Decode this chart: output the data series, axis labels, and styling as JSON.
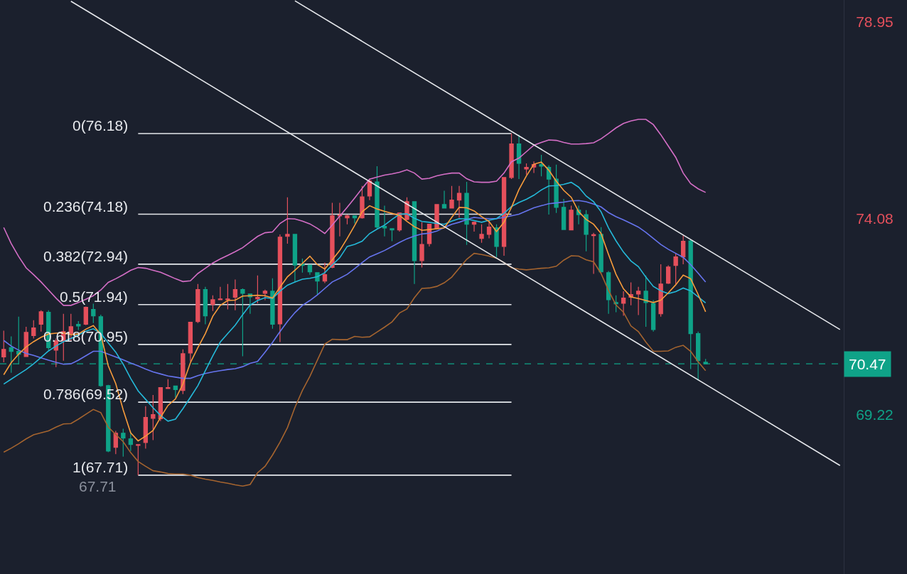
{
  "chart_data": {
    "type": "candlestick",
    "tick_labels": "y",
    "ylim": [
      65.26,
      79.49
    ],
    "yticks": [
      78.95,
      74.08,
      69.22
    ],
    "categories": [
      null,
      null,
      null,
      null,
      null,
      null,
      null,
      null,
      null,
      null,
      null,
      null,
      null,
      null,
      null,
      null,
      null,
      null,
      null,
      null,
      null,
      null,
      null,
      null,
      null,
      null,
      null,
      null,
      null,
      null,
      null,
      null,
      null,
      null,
      null,
      null,
      null,
      null,
      null,
      null,
      null,
      null,
      null,
      null,
      null,
      null,
      null,
      null,
      null,
      null,
      null,
      null,
      null,
      null,
      null,
      null,
      null,
      null,
      null,
      null,
      null,
      null,
      null,
      null,
      null,
      null,
      null,
      null,
      null,
      null,
      null,
      null,
      null,
      null,
      null,
      null,
      null,
      null,
      null,
      null,
      null,
      null,
      null,
      null,
      null,
      null,
      null,
      null,
      null,
      null,
      null,
      null,
      null,
      null,
      null,
      null,
      null,
      null,
      null,
      null,
      null,
      null,
      null,
      null,
      null,
      null,
      null,
      null,
      null,
      null,
      null,
      null,
      null
    ],
    "ohlc": [
      [
        70.64,
        71.29,
        70.51,
        70.83
      ],
      [
        70.87,
        71.15,
        70.25,
        70.78
      ],
      [
        70.78,
        71.64,
        70.46,
        70.71
      ],
      [
        70.65,
        71.39,
        70.64,
        71.25
      ],
      [
        71.17,
        71.55,
        71.1,
        71.36
      ],
      [
        71.45,
        71.8,
        71.27,
        71.76
      ],
      [
        71.75,
        71.8,
        70.81,
        70.87
      ],
      [
        70.81,
        71.1,
        70.39,
        71.04
      ],
      [
        71.04,
        71.71,
        70.55,
        71.27
      ],
      [
        71.22,
        71.71,
        71.04,
        71.39
      ],
      [
        71.45,
        71.53,
        71.31,
        71.41
      ],
      [
        71.45,
        71.89,
        71.43,
        71.87
      ],
      [
        71.82,
        71.96,
        71.48,
        71.66
      ],
      [
        71.64,
        71.69,
        69.9,
        69.93
      ],
      [
        69.93,
        69.95,
        68.28,
        68.31
      ],
      [
        68.4,
        68.81,
        68.23,
        68.75
      ],
      [
        68.75,
        68.86,
        68.17,
        68.63
      ],
      [
        68.61,
        68.79,
        68.31,
        68.47
      ],
      [
        68.45,
        68.47,
        67.71,
        68.47
      ],
      [
        68.52,
        69.42,
        68.37,
        69.14
      ],
      [
        69.12,
        69.7,
        68.58,
        69.21
      ],
      [
        69.11,
        69.88,
        69.05,
        69.88
      ],
      [
        69.86,
        70.09,
        69.86,
        69.88
      ],
      [
        69.92,
        69.92,
        69.63,
        69.83
      ],
      [
        69.81,
        70.83,
        69.72,
        70.72
      ],
      [
        70.74,
        71.5,
        70.53,
        71.5
      ],
      [
        71.52,
        72.45,
        71.48,
        72.31
      ],
      [
        72.31,
        72.38,
        71.45,
        71.66
      ],
      [
        71.94,
        72.17,
        71.78,
        72.06
      ],
      [
        72.06,
        72.38,
        72.06,
        72.08
      ],
      [
        72.06,
        72.45,
        71.82,
        72.08
      ],
      [
        72.12,
        72.56,
        71.8,
        72.31
      ],
      [
        72.31,
        72.34,
        70.66,
        72.22
      ],
      [
        72.2,
        72.2,
        71.71,
        72.13
      ],
      [
        72.08,
        72.66,
        71.97,
        72.12
      ],
      [
        72.22,
        72.31,
        72.05,
        72.27
      ],
      [
        72.27,
        72.59,
        71.34,
        71.45
      ],
      [
        71.46,
        73.68,
        71.01,
        73.61
      ],
      [
        73.63,
        74.6,
        73.45,
        73.68
      ],
      [
        73.68,
        73.68,
        72.49,
        72.92
      ],
      [
        72.94,
        73.08,
        72.73,
        72.91
      ],
      [
        72.92,
        72.92,
        72.68,
        72.75
      ],
      [
        72.73,
        72.73,
        72.19,
        72.52
      ],
      [
        72.52,
        72.98,
        72.47,
        72.68
      ],
      [
        72.86,
        74.46,
        72.84,
        74.14
      ],
      [
        74.14,
        74.46,
        73.63,
        74.16
      ],
      [
        74.09,
        74.17,
        73.93,
        74.14
      ],
      [
        74.14,
        74.14,
        73.95,
        74.09
      ],
      [
        74.09,
        74.88,
        74.07,
        74.61
      ],
      [
        74.63,
        75.06,
        74.53,
        75.0
      ],
      [
        74.98,
        75.37,
        73.82,
        73.86
      ],
      [
        73.88,
        74.39,
        73.63,
        73.84
      ],
      [
        73.82,
        73.82,
        73.51,
        73.79
      ],
      [
        73.79,
        74.21,
        73.75,
        74.21
      ],
      [
        74.05,
        74.6,
        74.03,
        74.49
      ],
      [
        74.49,
        74.49,
        72.45,
        73.03
      ],
      [
        73.03,
        73.98,
        72.86,
        73.43
      ],
      [
        73.45,
        73.93,
        73.38,
        73.93
      ],
      [
        73.82,
        74.42,
        73.8,
        74.42
      ],
      [
        74.42,
        74.76,
        74.33,
        74.33
      ],
      [
        74.33,
        74.88,
        74.33,
        74.53
      ],
      [
        74.53,
        74.88,
        74.09,
        74.7
      ],
      [
        74.7,
        74.98,
        73.42,
        73.93
      ],
      [
        73.93,
        74.0,
        73.75,
        73.98
      ],
      [
        73.58,
        73.93,
        73.47,
        73.68
      ],
      [
        73.68,
        74.03,
        73.58,
        73.86
      ],
      [
        73.84,
        73.93,
        73.12,
        73.38
      ],
      [
        73.38,
        75.09,
        73.15,
        75.09
      ],
      [
        75.09,
        76.18,
        75.05,
        75.92
      ],
      [
        75.92,
        76.15,
        75.05,
        75.44
      ],
      [
        75.3,
        75.44,
        75.16,
        75.34
      ],
      [
        75.35,
        75.49,
        75.2,
        75.41
      ],
      [
        75.41,
        75.65,
        75.12,
        75.37
      ],
      [
        75.34,
        75.39,
        74.17,
        75.05
      ],
      [
        75.05,
        75.41,
        74.21,
        74.35
      ],
      [
        74.35,
        74.56,
        73.79,
        73.8
      ],
      [
        73.79,
        74.39,
        73.79,
        74.28
      ],
      [
        74.28,
        74.39,
        73.93,
        74.17
      ],
      [
        74.17,
        74.28,
        73.26,
        73.68
      ],
      [
        73.65,
        73.72,
        72.7,
        73.67
      ],
      [
        73.68,
        73.86,
        72.73,
        72.75
      ],
      [
        72.73,
        72.77,
        71.71,
        72.06
      ],
      [
        71.99,
        72.17,
        71.75,
        71.96
      ],
      [
        71.97,
        72.27,
        71.66,
        72.1
      ],
      [
        72.12,
        72.49,
        71.92,
        72.19
      ],
      [
        72.2,
        72.38,
        71.68,
        72.27
      ],
      [
        72.27,
        72.66,
        71.39,
        71.99
      ],
      [
        71.97,
        72.05,
        71.27,
        71.32
      ],
      [
        71.71,
        72.94,
        71.64,
        72.45
      ],
      [
        72.47,
        72.91,
        72.45,
        72.87
      ],
      [
        72.91,
        73.21,
        72.45,
        73.12
      ],
      [
        73.12,
        73.65,
        72.94,
        73.51
      ],
      [
        73.52,
        73.56,
        70.34,
        71.22
      ],
      [
        71.22,
        71.27,
        70.06,
        70.55
      ],
      [
        70.51,
        70.59,
        70.46,
        70.47
      ],
      null,
      null,
      null,
      null,
      null,
      null,
      null,
      null,
      null,
      null,
      null,
      null,
      null,
      null,
      null,
      null,
      null,
      null
    ],
    "colors": [
      "#e5505c",
      "#0fa388",
      "#0fa388",
      "#e5505c",
      "#e5505c",
      "#e5505c",
      "#0fa388",
      "#e5505c",
      "#e5505c",
      "#e5505c",
      "#0fa388",
      "#e5505c",
      "#0fa388",
      "#0fa388",
      "#0fa388",
      "#e5505c",
      "#0fa388",
      "#0fa388",
      "#e5505c",
      "#e5505c",
      "#e5505c",
      "#e5505c",
      "#e5505c",
      "#0fa388",
      "#e5505c",
      "#e5505c",
      "#e5505c",
      "#0fa388",
      "#e5505c",
      "#e5505c",
      "#e5505c",
      "#e5505c",
      "#0fa388",
      "#0fa388",
      "#e5505c",
      "#e5505c",
      "#0fa388",
      "#e5505c",
      "#e5505c",
      "#0fa388",
      "#0fa388",
      "#0fa388",
      "#0fa388",
      "#e5505c",
      "#e5505c",
      "#e5505c",
      "#e5505c",
      "#0fa388",
      "#e5505c",
      "#e5505c",
      "#0fa388",
      "#0fa388",
      "#0fa388",
      "#e5505c",
      "#e5505c",
      "#0fa388",
      "#e5505c",
      "#e5505c",
      "#e5505c",
      "#0fa388",
      "#e5505c",
      "#e5505c",
      "#0fa388",
      "#e5505c",
      "#e5505c",
      "#e5505c",
      "#0fa388",
      "#e5505c",
      "#e5505c",
      "#0fa388",
      "#e5505c",
      "#e5505c",
      "#0fa388",
      "#0fa388",
      "#0fa388",
      "#0fa388",
      "#e5505c",
      "#0fa388",
      "#0fa388",
      "#e5505c",
      "#0fa388",
      "#0fa388",
      "#0fa388",
      "#e5505c",
      "#e5505c",
      "#e5505c",
      "#0fa388",
      "#0fa388",
      "#e5505c",
      "#e5505c",
      "#e5505c",
      "#e5505c",
      "#0fa388",
      "#0fa388",
      "#0fa388",
      null,
      null,
      null,
      null,
      null,
      null,
      null,
      null,
      null,
      null,
      null,
      null,
      null,
      null,
      null,
      null,
      null,
      null
    ],
    "series": [
      {
        "type": "line",
        "color": "#d46ec6",
        "values": [
          73.85,
          73.45,
          73.13,
          72.85,
          72.68,
          72.5,
          72.3,
          72.1,
          71.92,
          71.92,
          71.99,
          72.07,
          72.16,
          72.3,
          72.49,
          72.58,
          72.68,
          72.79,
          72.86,
          72.84,
          72.79,
          72.74,
          72.66,
          72.58,
          72.51,
          72.53,
          72.71,
          72.84,
          72.97,
          73.07,
          73.16,
          73.25,
          73.35,
          73.49,
          73.63,
          73.72,
          73.74,
          73.95,
          74.07,
          74.06,
          74.01,
          73.94,
          73.83,
          73.7,
          73.91,
          74.13,
          74.35,
          74.58,
          74.82,
          75.05,
          75.1,
          75.15,
          75.18,
          75.22,
          75.28,
          75.2,
          75.05,
          75.07,
          75.13,
          75.17,
          75.2,
          75.2,
          75.06,
          74.98,
          74.97,
          74.97,
          75.0,
          75.2,
          75.48,
          75.57,
          75.73,
          75.89,
          75.96,
          76.02,
          76.01,
          75.96,
          75.92,
          75.92,
          75.93,
          75.95,
          76.05,
          76.18,
          76.32,
          76.43,
          76.49,
          76.53,
          76.53,
          76.4,
          76.15,
          75.87,
          75.59,
          75.2,
          74.94,
          74.81,
          74.72,
          null,
          null,
          null,
          null,
          null,
          null,
          null,
          null,
          null,
          null,
          null,
          null,
          null,
          null,
          null,
          null,
          null,
          null
        ]
      },
      {
        "type": "line",
        "color": "#a5642f",
        "values": [
          68.28,
          68.38,
          68.49,
          68.61,
          68.71,
          68.76,
          68.81,
          68.9,
          68.98,
          68.99,
          69.1,
          69.22,
          69.34,
          69.26,
          68.9,
          68.72,
          68.54,
          68.27,
          68.05,
          67.93,
          67.82,
          67.79,
          67.75,
          67.74,
          67.74,
          67.71,
          67.65,
          67.61,
          67.58,
          67.54,
          67.51,
          67.47,
          67.44,
          67.48,
          67.77,
          67.93,
          68.21,
          68.53,
          68.89,
          69.39,
          69.81,
          70.16,
          70.56,
          70.96,
          71.08,
          71.07,
          71.07,
          71.15,
          71.13,
          71.14,
          71.26,
          71.38,
          71.51,
          71.73,
          71.83,
          72.11,
          72.34,
          72.35,
          72.39,
          72.48,
          72.62,
          72.84,
          73.06,
          73.21,
          73.18,
          73.14,
          73.09,
          72.98,
          72.85,
          72.82,
          72.8,
          72.82,
          72.84,
          72.85,
          72.89,
          73.04,
          73.15,
          73.14,
          73.05,
          73.0,
          72.71,
          72.29,
          71.93,
          71.75,
          71.41,
          71.27,
          71.01,
          70.78,
          70.78,
          70.79,
          70.88,
          70.93,
          70.78,
          70.52,
          70.3,
          null,
          null,
          null,
          null,
          null,
          null,
          null,
          null,
          null,
          null,
          null,
          null,
          null,
          null,
          null,
          null,
          null,
          null
        ]
      },
      {
        "type": "line",
        "color": "#6674ee",
        "values": [
          71.05,
          70.91,
          70.81,
          70.73,
          70.68,
          70.62,
          70.56,
          70.51,
          70.46,
          70.47,
          70.56,
          70.67,
          70.78,
          70.78,
          70.71,
          70.64,
          70.57,
          70.49,
          70.42,
          70.34,
          70.27,
          70.22,
          70.17,
          70.14,
          70.11,
          70.11,
          70.18,
          70.23,
          70.27,
          70.3,
          70.33,
          70.35,
          70.4,
          70.48,
          70.53,
          70.76,
          71.0,
          71.27,
          71.52,
          71.74,
          71.92,
          72.04,
          72.18,
          72.34,
          72.5,
          72.59,
          72.69,
          72.83,
          72.98,
          73.12,
          73.2,
          73.28,
          73.38,
          73.48,
          73.57,
          73.64,
          73.69,
          73.71,
          73.76,
          73.85,
          73.93,
          73.98,
          74.05,
          74.1,
          74.08,
          74.07,
          74.07,
          74.1,
          74.14,
          74.18,
          74.26,
          74.34,
          74.39,
          74.44,
          74.46,
          74.48,
          74.51,
          74.52,
          74.49,
          74.43,
          74.36,
          74.22,
          74.12,
          74.04,
          73.95,
          73.86,
          73.73,
          73.58,
          73.43,
          73.31,
          73.21,
          73.11,
          72.93,
          72.72,
          72.5,
          null,
          null,
          null,
          null,
          null,
          null,
          null,
          null,
          null,
          null,
          null,
          null,
          null,
          null,
          null,
          null,
          null,
          null
        ]
      },
      {
        "type": "line",
        "color": "#25b9d9",
        "values": [
          69.97,
          70.09,
          70.21,
          70.33,
          70.47,
          70.63,
          70.79,
          70.91,
          71.02,
          71.1,
          71.19,
          71.28,
          71.34,
          71.23,
          70.99,
          70.76,
          70.46,
          70.11,
          69.8,
          69.59,
          69.38,
          69.19,
          69.05,
          69.1,
          69.36,
          69.64,
          69.93,
          70.3,
          70.67,
          71.01,
          71.22,
          71.43,
          71.69,
          71.93,
          72.04,
          72.11,
          72.09,
          72.27,
          72.42,
          72.5,
          72.57,
          72.59,
          72.63,
          72.73,
          72.92,
          73.1,
          73.38,
          73.43,
          73.51,
          73.7,
          73.81,
          73.91,
          74.05,
          74.18,
          74.19,
          74.08,
          74.0,
          73.98,
          73.95,
          73.93,
          74.01,
          74.07,
          74.06,
          74.02,
          73.98,
          74.03,
          74.07,
          74.2,
          74.37,
          74.47,
          74.55,
          74.65,
          74.78,
          74.88,
          74.89,
          74.92,
          74.97,
          74.85,
          74.63,
          74.49,
          74.24,
          73.84,
          73.52,
          73.24,
          73.02,
          72.88,
          72.62,
          72.39,
          72.28,
          72.21,
          72.26,
          72.35,
          72.28,
          72.13,
          71.98,
          null,
          null,
          null,
          null,
          null,
          null,
          null,
          null,
          null,
          null,
          null,
          null,
          null,
          null,
          null,
          null,
          null,
          null
        ]
      },
      {
        "type": "line",
        "color": "#f89c3c",
        "values": [
          70.2,
          70.5,
          70.71,
          70.89,
          71.02,
          71.13,
          71.21,
          71.23,
          71.24,
          71.19,
          71.21,
          71.33,
          71.42,
          71.2,
          70.42,
          69.98,
          69.33,
          68.76,
          68.56,
          68.68,
          68.82,
          69.14,
          69.44,
          69.6,
          69.97,
          70.5,
          70.87,
          71.22,
          71.65,
          71.92,
          72.04,
          72.05,
          72.15,
          72.16,
          72.17,
          72.16,
          72.1,
          72.37,
          72.63,
          72.79,
          72.96,
          73.14,
          72.93,
          72.82,
          73.05,
          73.28,
          73.58,
          73.9,
          74.24,
          74.39,
          74.31,
          74.25,
          74.2,
          74.15,
          74.0,
          73.87,
          73.78,
          73.8,
          73.82,
          73.84,
          74.1,
          74.35,
          74.34,
          74.26,
          74.12,
          74.0,
          73.75,
          73.98,
          74.35,
          74.79,
          75.13,
          75.42,
          75.47,
          75.27,
          75.0,
          74.77,
          74.6,
          74.24,
          74.05,
          73.93,
          73.7,
          73.18,
          72.69,
          72.33,
          72.13,
          72.09,
          72.04,
          71.99,
          72.05,
          72.23,
          72.43,
          72.67,
          72.58,
          72.19,
          71.76,
          null,
          null,
          null,
          null,
          null,
          null,
          null,
          null,
          null,
          null,
          null,
          null,
          null,
          null,
          null,
          null,
          null,
          null
        ]
      },
      {
        "type": "line",
        "color": "#e6e8ec",
        "values": [
          null,
          null,
          null,
          null,
          null,
          null,
          null,
          null,
          null,
          null,
          null,
          null,
          null,
          null,
          null,
          null,
          null,
          null,
          null,
          null,
          null,
          null,
          null,
          null,
          null,
          null,
          null,
          null,
          null,
          null,
          null,
          null,
          null,
          null,
          null,
          null,
          null,
          null,
          null,
          79.47,
          null,
          null,
          null,
          null,
          null,
          null,
          null,
          null,
          null,
          null,
          null,
          null,
          null,
          null,
          null,
          null,
          null,
          null,
          null,
          null,
          null,
          null,
          null,
          null,
          null,
          null,
          null,
          null,
          null,
          null,
          null,
          null,
          null,
          null,
          null,
          null,
          null,
          null,
          null,
          null,
          null,
          null,
          null,
          null,
          null,
          null,
          null,
          null,
          null,
          null,
          null,
          null,
          null,
          null,
          null,
          null,
          null,
          null,
          null,
          null,
          null,
          null,
          null,
          null,
          null,
          null,
          null,
          null,
          null,
          null,
          null,
          null,
          71.32
        ]
      },
      {
        "type": "line",
        "color": "#e6e8ec",
        "values": [
          null,
          null,
          null,
          null,
          null,
          null,
          null,
          null,
          null,
          79.46,
          null,
          null,
          null,
          null,
          null,
          null,
          null,
          null,
          null,
          null,
          null,
          null,
          null,
          null,
          null,
          null,
          null,
          null,
          null,
          null,
          null,
          null,
          null,
          null,
          null,
          null,
          null,
          null,
          null,
          null,
          null,
          null,
          null,
          null,
          null,
          null,
          null,
          null,
          null,
          null,
          null,
          null,
          null,
          null,
          null,
          null,
          null,
          null,
          null,
          null,
          null,
          null,
          null,
          null,
          null,
          null,
          null,
          null,
          null,
          null,
          null,
          null,
          null,
          null,
          null,
          null,
          null,
          null,
          null,
          null,
          null,
          null,
          null,
          null,
          null,
          null,
          null,
          null,
          null,
          null,
          null,
          null,
          null,
          null,
          null,
          null,
          null,
          null,
          null,
          null,
          null,
          null,
          null,
          null,
          null,
          null,
          null,
          null,
          null,
          null,
          null,
          null,
          67.95
        ]
      }
    ],
    "ref_lines": [
      {
        "axis": "y",
        "value": 76.18,
        "label": "0(76.18)",
        "color": "#e6e8ec"
      },
      {
        "axis": "y",
        "value": 74.18,
        "label": "0.236(74.18)",
        "color": "#e6e8ec"
      },
      {
        "axis": "y",
        "value": 72.94,
        "label": "0.382(72.94)",
        "color": "#e6e8ec"
      },
      {
        "axis": "y",
        "value": 71.94,
        "label": "0.5(71.94)",
        "color": "#e6e8ec"
      },
      {
        "axis": "y",
        "value": 70.95,
        "label": "0.618(70.95)",
        "color": "#e6e8ec"
      },
      {
        "axis": "y",
        "value": 69.52,
        "label": "0.786(69.52)",
        "color": "#e6e8ec"
      },
      {
        "axis": "y",
        "value": 67.71,
        "label": "1(67.71)",
        "color": "#e6e8ec"
      },
      {
        "axis": "y",
        "value": 70.47,
        "label": "70.47",
        "color": "#0fa388",
        "line_style": "dashed"
      }
    ],
    "annotations": [
      "67.71"
    ]
  }
}
